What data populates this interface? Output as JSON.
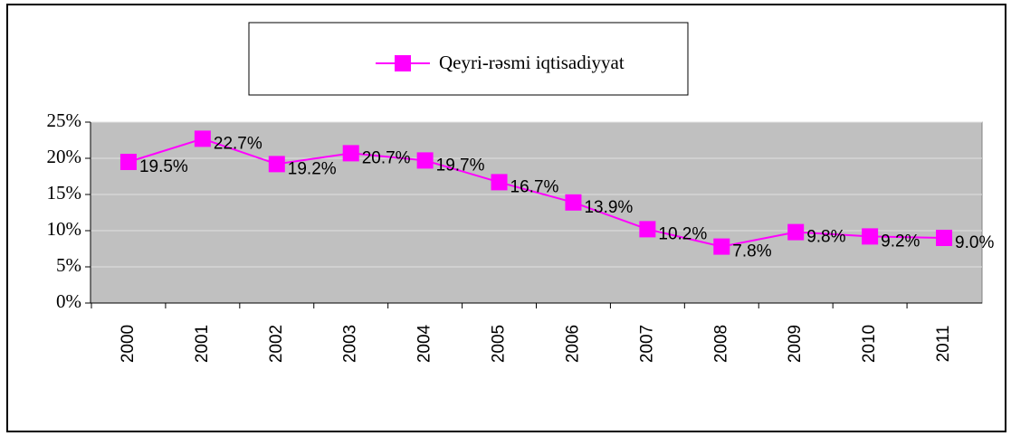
{
  "chart_data": {
    "type": "line",
    "categories": [
      "2000",
      "2001",
      "2002",
      "2003",
      "2004",
      "2005",
      "2006",
      "2007",
      "2008",
      "2009",
      "2010",
      "2011"
    ],
    "series": [
      {
        "name": "Qeyri-rəsmi iqtisadiyyat",
        "color": "#ff00ff",
        "values": [
          19.5,
          22.7,
          19.2,
          20.7,
          19.7,
          16.7,
          13.9,
          10.2,
          7.8,
          9.8,
          9.2,
          9.0
        ],
        "value_labels": [
          "19.5%",
          "22.7%",
          "19.2%",
          "20.7%",
          "19.7%",
          "16.7%",
          "13.9%",
          "10.2%",
          "7.8%",
          "9.8%",
          "9.2%",
          "9.0%"
        ]
      }
    ],
    "ylim": [
      0,
      25
    ],
    "yticks": [
      {
        "value": 0,
        "label": "0%"
      },
      {
        "value": 5,
        "label": "5%"
      },
      {
        "value": 10,
        "label": "10%"
      },
      {
        "value": 15,
        "label": "15%"
      },
      {
        "value": 20,
        "label": "20%"
      },
      {
        "value": 25,
        "label": "25%"
      }
    ],
    "grid": true,
    "legend": "top"
  }
}
